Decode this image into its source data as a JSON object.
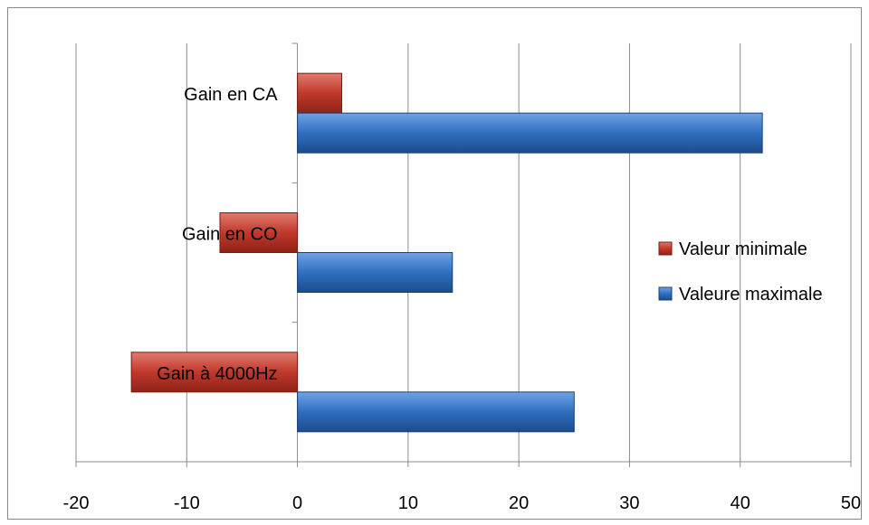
{
  "chart_data": {
    "type": "bar",
    "orientation": "horizontal",
    "categories": [
      "Gain en CA",
      "Gain en CO",
      "Gain à 4000Hz"
    ],
    "series": [
      {
        "name": "Valeur minimale",
        "values": [
          4,
          -7,
          -15
        ],
        "color": "#c0392b"
      },
      {
        "name": "Valeure maximale",
        "values": [
          42,
          14,
          25
        ],
        "color": "#2f6fc0"
      }
    ],
    "xlim": [
      -20,
      50
    ],
    "xticks": [
      -20,
      -10,
      0,
      10,
      20,
      30,
      40,
      50
    ],
    "grid": true,
    "legend_position": "right",
    "title": "",
    "xlabel": "",
    "ylabel": ""
  }
}
